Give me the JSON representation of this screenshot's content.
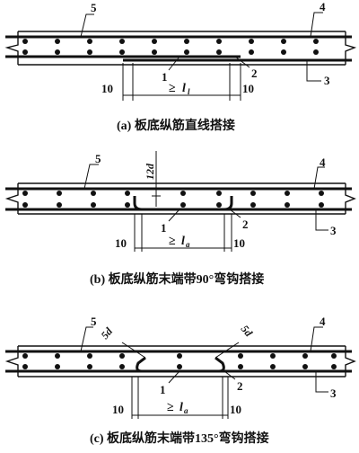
{
  "panels": [
    {
      "caption": "(a)  板底纵筋直线搭接",
      "labels": {
        "top_left": "5",
        "top_right": "4",
        "bottom_right": "3",
        "lap_left": "1",
        "lap_right": "2"
      },
      "dims": {
        "left": "10",
        "right": "10",
        "lap": "≥",
        "lap_symbol": "l",
        "lap_sub": "l"
      },
      "hook_note": ""
    },
    {
      "caption": "(b)  板底纵筋末端带90°弯钩搭接",
      "labels": {
        "top_left": "5",
        "top_right": "4",
        "bottom_right": "3",
        "lap_left": "1",
        "lap_right": "2"
      },
      "dims": {
        "left": "10",
        "right": "10",
        "lap": "≥",
        "lap_symbol": "l",
        "lap_sub": "a"
      },
      "hook_note": "12d"
    },
    {
      "caption": "(c)  板底纵筋末端带135°弯钩搭接",
      "labels": {
        "top_left": "5",
        "top_right": "4",
        "bottom_right": "3",
        "lap_left": "1",
        "lap_right": "2"
      },
      "dims": {
        "left": "10",
        "right": "10",
        "lap": "≥",
        "lap_symbol": "l",
        "lap_sub": "a"
      },
      "hook_note_left": "5d",
      "hook_note_right": "5d"
    }
  ]
}
